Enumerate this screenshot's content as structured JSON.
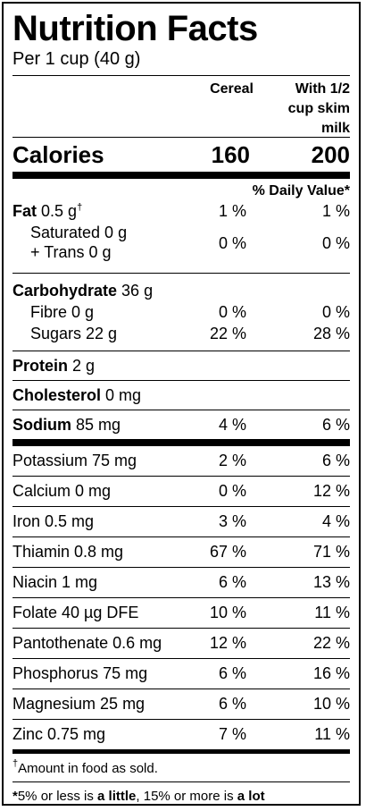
{
  "title": "Nutrition Facts",
  "serving": "Per 1 cup (40 g)",
  "columns": {
    "cereal": "Cereal",
    "with_milk_1": "With 1/2",
    "with_milk_2": "cup skim",
    "with_milk_3": "milk"
  },
  "calories": {
    "label": "Calories",
    "cereal": "160",
    "with_milk": "200"
  },
  "daily_value_header": "% Daily Value*",
  "fat": {
    "label": "Fat",
    "amount": "0.5 g",
    "mark": "†",
    "cereal": "1 %",
    "with_milk": "1 %"
  },
  "saturated": {
    "line1": "Saturated 0 g",
    "line2": "+ Trans 0 g",
    "cereal": "0 %",
    "with_milk": "0 %"
  },
  "carbohydrate": {
    "label": "Carbohydrate",
    "amount": "36 g"
  },
  "fibre": {
    "label": "Fibre 0 g",
    "cereal": "0 %",
    "with_milk": "0 %"
  },
  "sugars": {
    "label": "Sugars 22 g",
    "cereal": "22 %",
    "with_milk": "28 %"
  },
  "protein": {
    "label": "Protein",
    "amount": "2 g"
  },
  "cholesterol": {
    "label": "Cholesterol",
    "amount": "0 mg"
  },
  "sodium": {
    "label": "Sodium",
    "amount": "85 mg",
    "cereal": "4 %",
    "with_milk": "6 %"
  },
  "minerals": [
    {
      "label": "Potassium 75 mg",
      "cereal": "2 %",
      "with_milk": "6 %"
    },
    {
      "label": "Calcium 0 mg",
      "cereal": "0 %",
      "with_milk": "12 %"
    },
    {
      "label": "Iron 0.5 mg",
      "cereal": "3 %",
      "with_milk": "4 %"
    },
    {
      "label": "Thiamin 0.8 mg",
      "cereal": "67 %",
      "with_milk": "71 %"
    },
    {
      "label": "Niacin 1 mg",
      "cereal": "6 %",
      "with_milk": "13 %"
    },
    {
      "label": "Folate 40 µg DFE",
      "cereal": "10 %",
      "with_milk": "11 %"
    },
    {
      "label": "Pantothenate 0.6 mg",
      "cereal": "12 %",
      "with_milk": "22 %"
    },
    {
      "label": "Phosphorus 75 mg",
      "cereal": "6 %",
      "with_milk": "16 %"
    },
    {
      "label": "Magnesium 25 mg",
      "cereal": "6 %",
      "with_milk": "10 %"
    },
    {
      "label": "Zinc 0.75 mg",
      "cereal": "7 %",
      "with_milk": "11 %"
    }
  ],
  "footnotes": {
    "amount_mark": "†",
    "amount_text": "Amount in food as sold.",
    "dv_mark": "*",
    "dv_part1": "5% or less is ",
    "dv_little": "a little",
    "dv_part2": ", 15% or more is ",
    "dv_lot": "a lot"
  }
}
